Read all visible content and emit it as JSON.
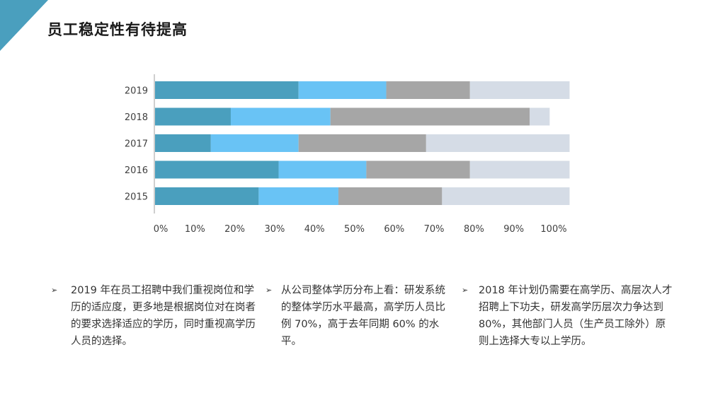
{
  "title": "员工稳定性有待提高",
  "accent_color": "#4a9fbe",
  "bullet_icon": "arrow-bullet-icon",
  "chart_data": {
    "type": "bar",
    "orientation": "horizontal",
    "stacked": true,
    "categories": [
      "2019",
      "2018",
      "2017",
      "2016",
      "2015"
    ],
    "series": [
      {
        "color": "#4a9fbe",
        "values": [
          36,
          19,
          14,
          31,
          26
        ]
      },
      {
        "color": "#69c3f5",
        "values": [
          22,
          25,
          22,
          22,
          20
        ]
      },
      {
        "color": "#a6a6a6",
        "values": [
          21,
          50,
          32,
          26,
          26
        ]
      },
      {
        "color": "#d5dce6",
        "values": [
          25,
          5,
          36,
          25,
          32
        ]
      }
    ],
    "x_ticks": [
      "0%",
      "10%",
      "20%",
      "30%",
      "40%",
      "50%",
      "60%",
      "70%",
      "80%",
      "90%",
      "100%"
    ],
    "xlim": [
      0,
      100
    ],
    "grid": false,
    "legend": "none"
  },
  "notes": [
    {
      "text": "2019 年在员工招聘中我们重视岗位和学历的适应度，更多地是根据岗位对在岗者的要求选择适应的学历，同时重视高学历人员的选择。"
    },
    {
      "text": "从公司整体学历分布上看：研发系统的整体学历水平最高，高学历人员比例 70%，高于去年同期 60% 的水平。"
    },
    {
      "text": "2018 年计划仍需要在高学历、高层次人才招聘上下功夫，研发高学历层次力争达到 80%，其他部门人员（生产员工除外）原则上选择大专以上学历。"
    }
  ]
}
